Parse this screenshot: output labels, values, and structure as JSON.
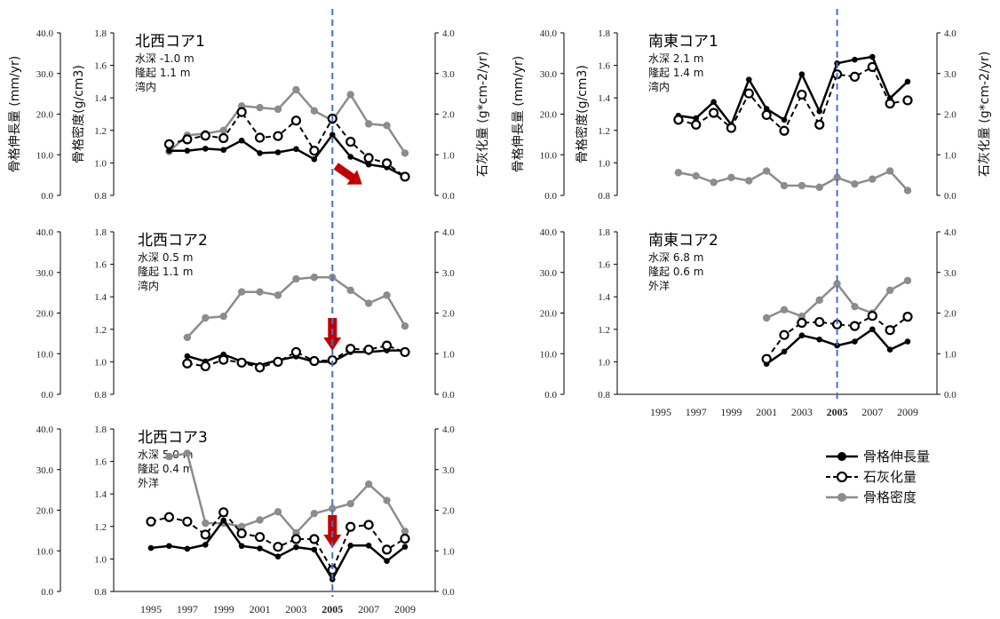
{
  "chart_data": {
    "type": "line",
    "marker_year": "2005",
    "colors": {
      "extension": "#000000",
      "calcification": "#000000",
      "density": "#8c8c8c",
      "marker_line": "#4472c4",
      "arrow": "#c00000"
    },
    "legend": [
      {
        "key": "extension",
        "label": "骨格伸長量"
      },
      {
        "key": "calcification",
        "label": "石灰化量"
      },
      {
        "key": "density",
        "label": "骨格密度"
      }
    ],
    "axes": {
      "left_outer": {
        "label": "骨格伸長量 (mm/yr)",
        "range": [
          0,
          40
        ],
        "ticks": [
          "0.0",
          "10.0",
          "20.0",
          "30.0",
          "40.0"
        ]
      },
      "left_inner": {
        "label": "骨格密度(g/cm3)",
        "range": [
          0.8,
          1.8
        ],
        "ticks": [
          "0.8",
          "1.0",
          "1.2",
          "1.4",
          "1.6",
          "1.8"
        ]
      },
      "right": {
        "label": "石灰化量 (g*cm-2/yr)",
        "range": [
          0,
          4
        ],
        "ticks": [
          "0.0",
          "1.0",
          "2.0",
          "3.0",
          "4.0"
        ]
      },
      "x_ticks": [
        "1995",
        "1997",
        "1999",
        "2001",
        "2003",
        "2005",
        "2007",
        "2009"
      ]
    },
    "panels": [
      {
        "id": "nw1",
        "title": "北西コア1",
        "info": [
          "水深 -1.0 m",
          "隆起 1.1 m",
          "湾内"
        ],
        "arrow": "diagonal",
        "x_labels": false,
        "series": {
          "extension": {
            "x": [
              1996,
              1997,
              1998,
              1999,
              2000,
              2001,
              2002,
              2003,
              2004,
              2005,
              2006,
              2007,
              2008,
              2009
            ],
            "y": [
              11.0,
              11.0,
              11.5,
              11.2,
              13.5,
              10.4,
              10.6,
              11.4,
              8.9,
              14.9,
              9.5,
              7.6,
              6.9,
              4.6
            ]
          },
          "calcification": {
            "x": [
              1996,
              1997,
              1998,
              1999,
              2000,
              2001,
              2002,
              2003,
              2004,
              2005,
              2006,
              2007,
              2008,
              2009
            ],
            "y": [
              1.26,
              1.38,
              1.47,
              1.41,
              2.05,
              1.42,
              1.46,
              1.84,
              1.1,
              1.89,
              1.32,
              0.92,
              0.79,
              0.46
            ]
          },
          "density": {
            "x": [
              1996,
              1997,
              1998,
              1999,
              2000,
              2001,
              2002,
              2003,
              2004,
              2005,
              2006,
              2007,
              2008,
              2009
            ],
            "y": [
              1.07,
              1.17,
              1.18,
              1.2,
              1.35,
              1.34,
              1.33,
              1.45,
              1.32,
              1.26,
              1.42,
              1.24,
              1.23,
              1.06
            ]
          }
        }
      },
      {
        "id": "se1",
        "title": "南東コア1",
        "info": [
          "水深 2.1 m",
          "隆起 1.4 m",
          "湾内"
        ],
        "arrow": "none",
        "x_labels": false,
        "series": {
          "extension": {
            "x": [
              1996,
              1997,
              1998,
              1999,
              2000,
              2001,
              2002,
              2003,
              2004,
              2005,
              2006,
              2007,
              2008,
              2009
            ],
            "y": [
              19.6,
              19.0,
              23.0,
              17.4,
              28.5,
              21.3,
              18.6,
              29.8,
              20.7,
              32.5,
              33.4,
              34.1,
              23.9,
              28.0
            ]
          },
          "calcification": {
            "x": [
              1996,
              1997,
              1998,
              1999,
              2000,
              2001,
              2002,
              2003,
              2004,
              2005,
              2006,
              2007,
              2008,
              2009
            ],
            "y": [
              1.86,
              1.74,
              2.03,
              1.66,
              2.51,
              1.98,
              1.59,
              2.48,
              1.74,
              2.98,
              2.92,
              3.16,
              2.26,
              2.34
            ]
          },
          "density": {
            "x": [
              1996,
              1997,
              1998,
              1999,
              2000,
              2001,
              2002,
              2003,
              2004,
              2005,
              2006,
              2007,
              2008,
              2009
            ],
            "y": [
              0.94,
              0.92,
              0.88,
              0.91,
              0.89,
              0.95,
              0.86,
              0.86,
              0.85,
              0.91,
              0.87,
              0.9,
              0.95,
              0.83
            ]
          }
        }
      },
      {
        "id": "nw2",
        "title": "北西コア2",
        "info": [
          "水深 0.5 m",
          "隆起 1.1 m",
          "湾内"
        ],
        "arrow": "down",
        "x_labels": false,
        "series": {
          "extension": {
            "x": [
              1997,
              1998,
              1999,
              2000,
              2001,
              2002,
              2003,
              2004,
              2005,
              2006,
              2007,
              2008,
              2009
            ],
            "y": [
              9.4,
              8.1,
              9.8,
              8.1,
              7.2,
              8.4,
              9.3,
              8.0,
              8.0,
              10.4,
              10.4,
              10.8,
              10.8
            ]
          },
          "calcification": {
            "x": [
              1997,
              1998,
              1999,
              2000,
              2001,
              2002,
              2003,
              2004,
              2005,
              2006,
              2007,
              2008,
              2009
            ],
            "y": [
              0.76,
              0.69,
              0.85,
              0.78,
              0.66,
              0.8,
              1.04,
              0.82,
              0.84,
              1.12,
              1.1,
              1.2,
              1.04
            ]
          },
          "density": {
            "x": [
              1997,
              1998,
              1999,
              2000,
              2001,
              2002,
              2003,
              2004,
              2005,
              2006,
              2007,
              2008,
              2009
            ],
            "y": [
              1.15,
              1.27,
              1.28,
              1.43,
              1.43,
              1.41,
              1.51,
              1.52,
              1.52,
              1.44,
              1.36,
              1.41,
              1.22
            ]
          }
        }
      },
      {
        "id": "se2",
        "title": "南東コア2",
        "info": [
          "水深 6.8 m",
          "隆起 0.6 m",
          "外洋"
        ],
        "arrow": "none",
        "x_labels": true,
        "series": {
          "extension": {
            "x": [
              2001,
              2002,
              2003,
              2004,
              2005,
              2006,
              2007,
              2008,
              2009
            ],
            "y": [
              7.5,
              10.5,
              14.5,
              13.5,
              12.0,
              13.0,
              16.0,
              11.0,
              13.0
            ]
          },
          "calcification": {
            "x": [
              2001,
              2002,
              2003,
              2004,
              2005,
              2006,
              2007,
              2008,
              2009
            ],
            "y": [
              0.87,
              1.46,
              1.76,
              1.78,
              1.72,
              1.68,
              1.93,
              1.58,
              1.91
            ]
          },
          "density": {
            "x": [
              2001,
              2002,
              2003,
              2004,
              2005,
              2006,
              2007,
              2008,
              2009
            ],
            "y": [
              1.27,
              1.32,
              1.28,
              1.38,
              1.48,
              1.34,
              1.3,
              1.44,
              1.5
            ]
          }
        }
      },
      {
        "id": "nw3",
        "title": "北西コア3",
        "info": [
          "水深 5.0 m",
          "隆起 0.4 m",
          "外洋"
        ],
        "arrow": "down",
        "x_labels": true,
        "series": {
          "extension": {
            "x": [
              1995,
              1996,
              1997,
              1998,
              1999,
              2000,
              2001,
              2002,
              2003,
              2004,
              2005,
              2006,
              2007,
              2008,
              2009
            ],
            "y": [
              10.7,
              11.2,
              10.5,
              11.5,
              17.5,
              11.2,
              10.6,
              8.6,
              10.9,
              10.3,
              3.0,
              11.3,
              11.3,
              7.5,
              11.0
            ]
          },
          "calcification": {
            "x": [
              1995,
              1996,
              1997,
              1998,
              1999,
              2000,
              2001,
              2002,
              2003,
              2004,
              2005,
              2006,
              2007,
              2008,
              2009
            ],
            "y": [
              1.72,
              1.83,
              1.72,
              1.4,
              1.95,
              1.43,
              1.34,
              1.1,
              1.29,
              1.29,
              0.53,
              1.59,
              1.64,
              1.03,
              1.3
            ]
          },
          "density": {
            "x": [
              1996,
              1997,
              1998,
              1999,
              2000,
              2001,
              2002,
              2003,
              2004,
              2005,
              2006,
              2007,
              2008,
              2009
            ],
            "y": [
              1.63,
              1.65,
              1.22,
              1.22,
              1.2,
              1.24,
              1.29,
              1.16,
              1.28,
              1.31,
              1.34,
              1.46,
              1.36,
              1.17
            ]
          }
        }
      }
    ]
  }
}
